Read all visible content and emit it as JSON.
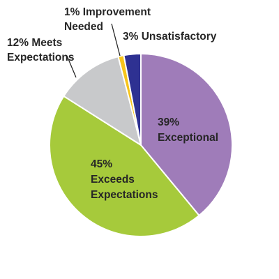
{
  "chart_data": {
    "type": "pie",
    "title": "",
    "slices": [
      {
        "name": "Exceptional",
        "value": 39,
        "color": "#9f7cb9",
        "label_lines": [
          "39%",
          "Exceptional"
        ]
      },
      {
        "name": "Exceeds Expectations",
        "value": 45,
        "color": "#a6ca3b",
        "label_lines": [
          "45%",
          "Exceeds",
          "Expectations"
        ]
      },
      {
        "name": "Meets Expectations",
        "value": 12,
        "color": "#c8c9cb",
        "label_lines": [
          "12% Meets",
          "Expectations"
        ]
      },
      {
        "name": "Improvement Needed",
        "value": 1,
        "color": "#f7c41a",
        "label_lines": [
          "1% Improvement",
          "Needed"
        ]
      },
      {
        "name": "Unsatisfactory",
        "value": 3,
        "color": "#2e3192",
        "label_lines": [
          "3% Unsatisfactory"
        ]
      }
    ]
  }
}
